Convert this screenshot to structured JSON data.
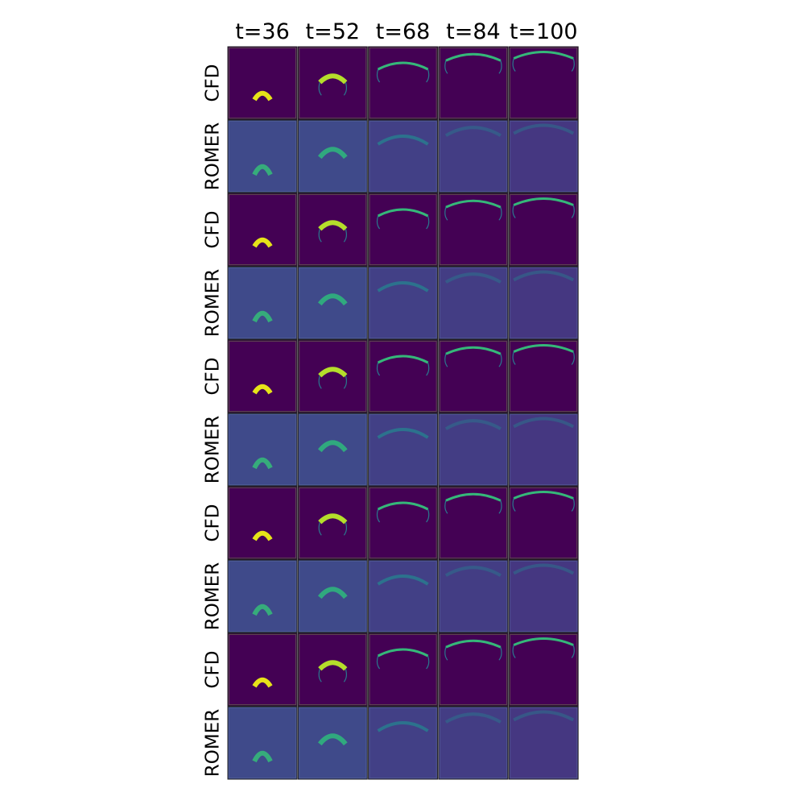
{
  "column_titles": [
    "t=36",
    "t=52",
    "t=68",
    "t=84",
    "t=100"
  ],
  "row_labels": [
    "CFD",
    "ROMER",
    "CFD",
    "ROMER",
    "CFD",
    "ROMER",
    "CFD",
    "ROMER",
    "CFD",
    "ROMER"
  ]
}
